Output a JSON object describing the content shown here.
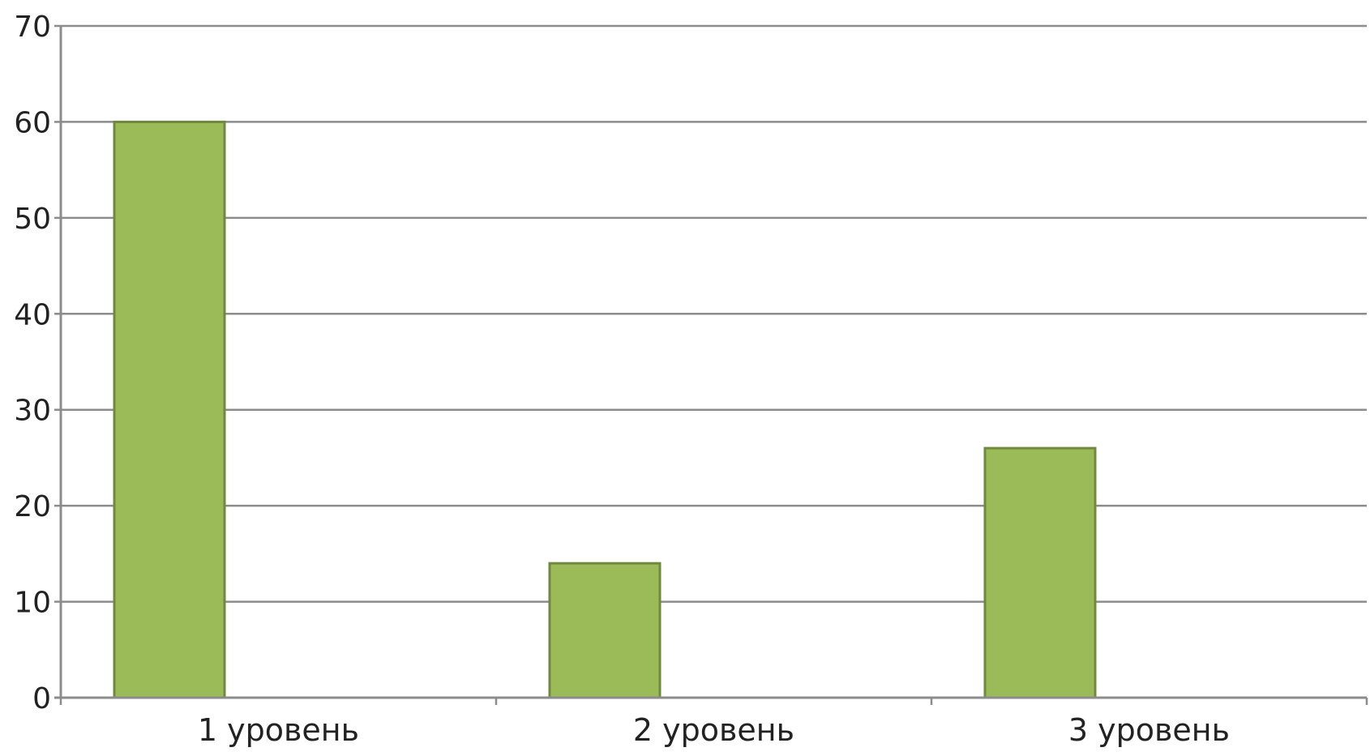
{
  "chart_data": {
    "type": "bar",
    "categories": [
      "1 уровень",
      "2 уровень",
      "3 уровень"
    ],
    "values": [
      60,
      14,
      26
    ],
    "ylim": [
      0,
      70
    ],
    "yticks": [
      0,
      10,
      20,
      30,
      40,
      50,
      60,
      70
    ],
    "grid": true,
    "bar_color": "#9BBB59",
    "bar_border_color": "#71893F",
    "grid_color": "#8C8C8C",
    "axis_color": "#8C8C8C"
  }
}
